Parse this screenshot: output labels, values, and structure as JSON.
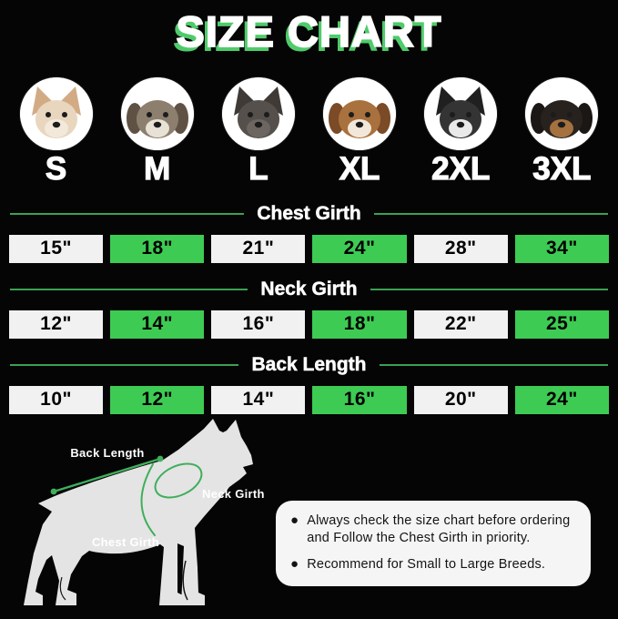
{
  "title": "SIZE CHART",
  "colors": {
    "background": "#050505",
    "accent_green": "#3ecb53",
    "heading_line_green": "#3aa152",
    "diagram_green": "#3fae5c",
    "title_shadow_green": "#4fcb6b",
    "cell_white": "#f1f1f1",
    "notes_box_bg": "#f5f5f5"
  },
  "sizes": [
    {
      "label": "S",
      "breed": "chihuahua",
      "photo_icon": "chihuahua-dog-photo",
      "ear_style": "up",
      "head_color": "#e8d6bf",
      "ear_color": "#d2ab85",
      "muzzle_color": "#f3e9db"
    },
    {
      "label": "M",
      "breed": "shih-tzu",
      "photo_icon": "shih-tzu-dog-photo",
      "ear_style": "down",
      "head_color": "#8d7f6e",
      "ear_color": "#5f5244",
      "muzzle_color": "#e8e2d6"
    },
    {
      "label": "L",
      "breed": "french-bulldog",
      "photo_icon": "french-bulldog-dog-photo",
      "ear_style": "up",
      "head_color": "#55504b",
      "ear_color": "#3f3a36",
      "muzzle_color": "#6d6660"
    },
    {
      "label": "XL",
      "breed": "beagle",
      "photo_icon": "beagle-dog-photo",
      "ear_style": "down",
      "head_color": "#a9713d",
      "ear_color": "#7b4a26",
      "muzzle_color": "#f1e8da"
    },
    {
      "label": "2XL",
      "breed": "border-collie",
      "photo_icon": "border-collie-dog-photo",
      "ear_style": "up",
      "head_color": "#343434",
      "ear_color": "#202020",
      "muzzle_color": "#e9e9e9"
    },
    {
      "label": "3XL",
      "breed": "doberman",
      "photo_icon": "doberman-dog-photo",
      "ear_style": "down",
      "head_color": "#28221f",
      "ear_color": "#1b1715",
      "muzzle_color": "#a5713f"
    }
  ],
  "sections": [
    {
      "heading": "Chest Girth",
      "values": [
        "15\"",
        "18\"",
        "21\"",
        "24\"",
        "28\"",
        "34\""
      ]
    },
    {
      "heading": "Neck Girth",
      "values": [
        "12\"",
        "14\"",
        "16\"",
        "18\"",
        "22\"",
        "25\""
      ]
    },
    {
      "heading": "Back Length",
      "values": [
        "10\"",
        "12\"",
        "14\"",
        "16\"",
        "20\"",
        "24\""
      ]
    }
  ],
  "diagram": {
    "back_length_label": "Back Length",
    "neck_girth_label": "Neck Girth",
    "chest_girth_label": "Chest Girth"
  },
  "notes": [
    "Always check the size chart before ordering and Follow the Chest Girth in priority.",
    "Recommend for Small to Large Breeds."
  ],
  "chart_data": {
    "type": "table",
    "title": "SIZE CHART",
    "categories": [
      "S",
      "M",
      "L",
      "XL",
      "2XL",
      "3XL"
    ],
    "series": [
      {
        "name": "Chest Girth",
        "unit": "inches",
        "values": [
          15,
          18,
          21,
          24,
          28,
          34
        ]
      },
      {
        "name": "Neck Girth",
        "unit": "inches",
        "values": [
          12,
          14,
          16,
          18,
          22,
          25
        ]
      },
      {
        "name": "Back Length",
        "unit": "inches",
        "values": [
          10,
          12,
          14,
          16,
          20,
          24
        ]
      }
    ],
    "layout": {
      "highlighted_cells": "alternating green",
      "grid": false,
      "legend_position": "none"
    }
  }
}
